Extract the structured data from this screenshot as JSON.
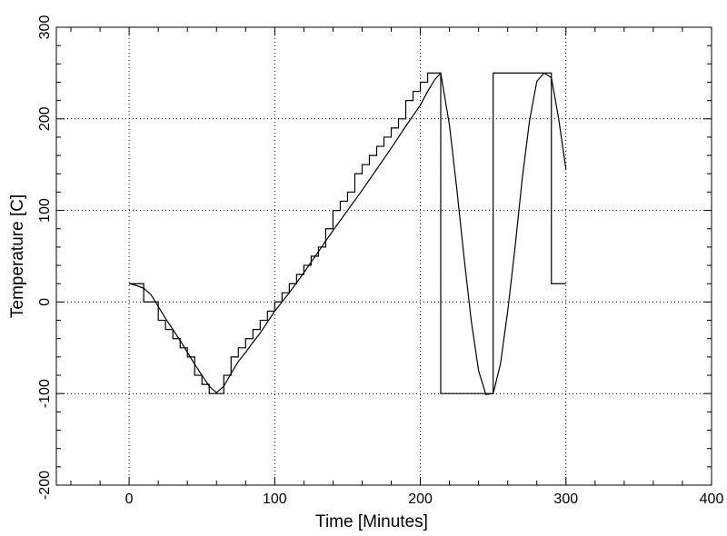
{
  "chart_data": {
    "type": "line",
    "xlabel": "Time [Minutes]",
    "ylabel": "Temperature [C]",
    "xlim": [
      -50,
      400
    ],
    "ylim": [
      -200,
      300
    ],
    "grid": true,
    "x_ticks": {
      "major": [
        0,
        100,
        200,
        300,
        400
      ],
      "minor": [
        -40,
        -20,
        20,
        40,
        60,
        80,
        120,
        140,
        160,
        180,
        220,
        240,
        260,
        280,
        320,
        340,
        360,
        380
      ],
      "labels": [
        "0",
        "100",
        "200",
        "300",
        "400"
      ]
    },
    "y_ticks": {
      "major": [
        -200,
        -100,
        0,
        100,
        200,
        300
      ],
      "minor": [
        -180,
        -160,
        -140,
        -120,
        -80,
        -60,
        -40,
        -20,
        20,
        40,
        60,
        80,
        120,
        140,
        160,
        180,
        220,
        240,
        260,
        280
      ],
      "labels": [
        "-200",
        "-100",
        "0",
        "100",
        "200",
        "300"
      ]
    },
    "series": [
      {
        "style": "step",
        "x": [
          0,
          10,
          10,
          20,
          20,
          25,
          25,
          30,
          30,
          35,
          35,
          40,
          40,
          45,
          45,
          50,
          50,
          55,
          55,
          65,
          65,
          70,
          70,
          75,
          75,
          80,
          80,
          85,
          85,
          90,
          90,
          95,
          95,
          100,
          100,
          105,
          105,
          110,
          110,
          115,
          115,
          120,
          120,
          125,
          125,
          130,
          130,
          135,
          135,
          140,
          140,
          145,
          145,
          150,
          150,
          155,
          155,
          160,
          160,
          165,
          165,
          170,
          170,
          175,
          175,
          180,
          180,
          185,
          185,
          190,
          190,
          195,
          195,
          200,
          200,
          205,
          205,
          214,
          214,
          250,
          250,
          290,
          290,
          300
        ],
        "y": [
          20,
          20,
          0,
          0,
          -20,
          -20,
          -30,
          -30,
          -40,
          -40,
          -50,
          -50,
          -60,
          -60,
          -80,
          -80,
          -90,
          -90,
          -100,
          -100,
          -80,
          -80,
          -60,
          -60,
          -50,
          -50,
          -40,
          -40,
          -30,
          -30,
          -20,
          -20,
          -10,
          -10,
          0,
          0,
          10,
          10,
          20,
          20,
          30,
          30,
          40,
          40,
          50,
          50,
          60,
          60,
          80,
          80,
          100,
          100,
          110,
          110,
          120,
          120,
          140,
          140,
          150,
          150,
          160,
          160,
          170,
          170,
          180,
          180,
          190,
          190,
          200,
          200,
          220,
          220,
          230,
          230,
          240,
          240,
          250,
          250,
          -100,
          -100,
          250,
          250,
          20,
          20
        ]
      },
      {
        "style": "smooth",
        "x": [
          0,
          5,
          10,
          15,
          20,
          25,
          30,
          35,
          40,
          45,
          50,
          55,
          60,
          65,
          70,
          75,
          80,
          85,
          90,
          95,
          100,
          110,
          120,
          130,
          140,
          150,
          160,
          170,
          180,
          190,
          200,
          205,
          210,
          214,
          220,
          225,
          230,
          235,
          240,
          245,
          250,
          255,
          260,
          265,
          270,
          275,
          280,
          285,
          290,
          295,
          300
        ],
        "y": [
          20,
          18,
          15,
          8,
          -5,
          -18,
          -30,
          -42,
          -55,
          -68,
          -80,
          -92,
          -99,
          -92,
          -78,
          -65,
          -55,
          -44,
          -34,
          -22,
          -10,
          10,
          32,
          55,
          78,
          100,
          122,
          145,
          168,
          192,
          215,
          230,
          243,
          250,
          193,
          124,
          49,
          -21,
          -75,
          -101,
          -100,
          -68,
          -10,
          59,
          135,
          198,
          241,
          250,
          245,
          200,
          145
        ]
      }
    ]
  }
}
